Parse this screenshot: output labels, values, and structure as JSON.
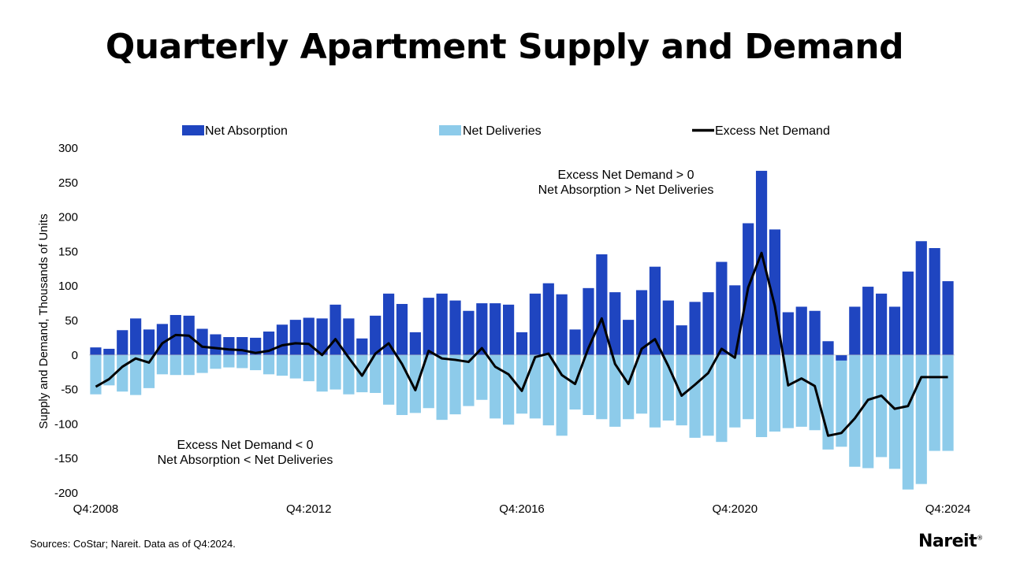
{
  "chart_data": {
    "type": "bar",
    "title": "Quarterly Apartment Supply and Demand",
    "ylabel": "Supply and Demand, Thousands of Units",
    "xlabel": "",
    "ylim": [
      -200,
      300
    ],
    "yticks": [
      300,
      250,
      200,
      150,
      100,
      50,
      0,
      -50,
      -100,
      -150,
      -200
    ],
    "x_tick_labels": [
      "Q4:2008",
      "Q4:2012",
      "Q4:2016",
      "Q4:2020",
      "Q4:2024"
    ],
    "x_tick_indices": [
      0,
      16,
      32,
      48,
      64
    ],
    "categories_note": "Quarters Q4:2008 through Q4:2024 (65 quarters)",
    "series": [
      {
        "name": "Net Absorption",
        "kind": "bar",
        "color": "#1f45c0",
        "values": [
          11,
          9,
          36,
          53,
          37,
          45,
          58,
          57,
          38,
          30,
          26,
          26,
          25,
          34,
          44,
          51,
          54,
          53,
          73,
          53,
          24,
          57,
          89,
          74,
          33,
          83,
          89,
          79,
          64,
          75,
          75,
          73,
          33,
          89,
          104,
          88,
          37,
          97,
          146,
          91,
          51,
          94,
          128,
          79,
          43,
          77,
          91,
          135,
          101,
          191,
          267,
          182,
          62,
          70,
          64,
          20,
          -8,
          70,
          99,
          89,
          70,
          121,
          165,
          155,
          107
        ]
      },
      {
        "name": "Net Deliveries",
        "kind": "bar",
        "color": "#8dcbea",
        "values": [
          -57,
          -44,
          -53,
          -58,
          -48,
          -28,
          -29,
          -29,
          -26,
          -20,
          -18,
          -19,
          -22,
          -28,
          -30,
          -34,
          -38,
          -53,
          -50,
          -57,
          -54,
          -55,
          -72,
          -87,
          -84,
          -77,
          -94,
          -86,
          -74,
          -65,
          -92,
          -101,
          -85,
          -92,
          -102,
          -117,
          -79,
          -87,
          -93,
          -104,
          -93,
          -85,
          -105,
          -95,
          -102,
          -120,
          -117,
          -126,
          -105,
          -93,
          -119,
          -111,
          -106,
          -104,
          -109,
          -137,
          -133,
          -162,
          -164,
          -148,
          -165,
          -195,
          -187,
          -139,
          -139
        ]
      },
      {
        "name": "Excess Net Demand",
        "kind": "line",
        "color": "#000000",
        "values": [
          -46,
          -35,
          -17,
          -5,
          -11,
          17,
          29,
          28,
          12,
          10,
          8,
          7,
          3,
          6,
          14,
          17,
          16,
          0,
          23,
          -4,
          -30,
          2,
          17,
          -13,
          -51,
          6,
          -5,
          -7,
          -10,
          10,
          -17,
          -28,
          -52,
          -3,
          2,
          -29,
          -42,
          10,
          53,
          -13,
          -42,
          9,
          23,
          -16,
          -59,
          -43,
          -26,
          9,
          -4,
          98,
          148,
          71,
          -44,
          -34,
          -45,
          -117,
          -113,
          -92,
          -65,
          -59,
          -78,
          -74,
          -32,
          -32,
          -32
        ]
      }
    ],
    "legend": {
      "position": "top",
      "items": [
        "Net Absorption",
        "Net Deliveries",
        "Excess Net Demand"
      ]
    },
    "annotations": {
      "upper_line1": "Excess Net Demand > 0",
      "upper_line2": "Net Absorption > Net Deliveries",
      "lower_line1": "Excess Net Demand < 0",
      "lower_line2": "Net Absorption < Net Deliveries"
    }
  },
  "footer": {
    "source": "Sources: CoStar; Nareit. Data as of Q4:2024.",
    "logo": "Nareit",
    "logo_mark": "®"
  }
}
